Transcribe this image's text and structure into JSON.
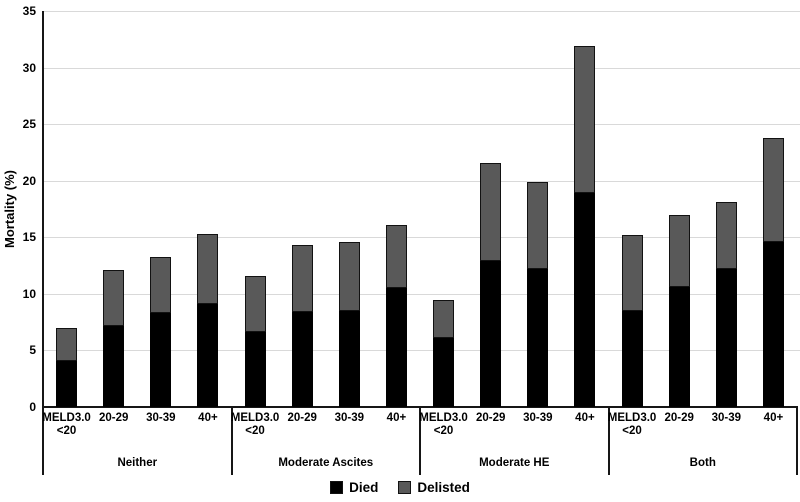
{
  "chart_data": {
    "type": "bar",
    "subtype": "stacked-vertical",
    "title": "",
    "ylabel": "Mortality (%)",
    "ylim": [
      0,
      35
    ],
    "yticks": [
      0,
      5,
      10,
      15,
      20,
      25,
      30,
      35
    ],
    "grid": "horizontal-light-gray",
    "legend_position": "bottom-center",
    "series": [
      {
        "name": "Died",
        "color": "#000000"
      },
      {
        "name": "Delisted",
        "color": "#595959"
      }
    ],
    "category_labels": [
      "MELD3.0\n<20",
      "20-29",
      "30-39",
      "40+"
    ],
    "groups": [
      {
        "label": "Neither",
        "bars": [
          {
            "category": "MELD3.0\n<20",
            "died": 4.1,
            "delisted": 2.9,
            "total": 7.0
          },
          {
            "category": "20-29",
            "died": 7.2,
            "delisted": 4.9,
            "total": 12.1
          },
          {
            "category": "30-39",
            "died": 8.3,
            "delisted": 5.0,
            "total": 13.3
          },
          {
            "category": "40+",
            "died": 9.1,
            "delisted": 6.2,
            "total": 15.3
          }
        ]
      },
      {
        "label": "Moderate Ascites",
        "bars": [
          {
            "category": "MELD3.0\n<20",
            "died": 6.6,
            "delisted": 5.0,
            "total": 11.6
          },
          {
            "category": "20-29",
            "died": 8.4,
            "delisted": 5.9,
            "total": 14.3
          },
          {
            "category": "30-39",
            "died": 8.5,
            "delisted": 6.1,
            "total": 14.6
          },
          {
            "category": "40+",
            "died": 10.5,
            "delisted": 5.6,
            "total": 16.1
          }
        ]
      },
      {
        "label": "Moderate HE",
        "bars": [
          {
            "category": "MELD3.0\n<20",
            "died": 6.1,
            "delisted": 3.4,
            "total": 9.5
          },
          {
            "category": "20-29",
            "died": 12.9,
            "delisted": 8.7,
            "total": 21.6
          },
          {
            "category": "30-39",
            "died": 12.2,
            "delisted": 7.7,
            "total": 19.9
          },
          {
            "category": "40+",
            "died": 18.9,
            "delisted": 13.0,
            "total": 31.9
          }
        ]
      },
      {
        "label": "Both",
        "bars": [
          {
            "category": "MELD3.0\n<20",
            "died": 8.5,
            "delisted": 6.7,
            "total": 15.2
          },
          {
            "category": "20-29",
            "died": 10.6,
            "delisted": 6.4,
            "total": 17.0
          },
          {
            "category": "30-39",
            "died": 12.2,
            "delisted": 5.9,
            "total": 18.1
          },
          {
            "category": "40+",
            "died": 14.6,
            "delisted": 9.2,
            "total": 23.8
          }
        ]
      }
    ],
    "legend": {
      "items": [
        {
          "label": "Died",
          "color": "#000000"
        },
        {
          "label": "Delisted",
          "color": "#595959"
        }
      ]
    },
    "colors": {
      "died": "#000000",
      "delisted": "#595959",
      "gridline": "#d9d9d9",
      "axis": "#161616",
      "text": "#000000",
      "background": "#ffffff"
    }
  }
}
